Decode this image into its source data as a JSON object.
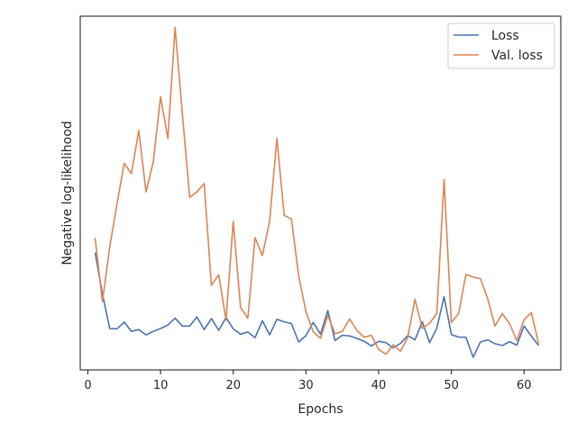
{
  "chart_data": {
    "type": "line",
    "xlabel": "Epochs",
    "ylabel": "Negative log-likelihood",
    "xlim": [
      -1.05,
      65.05
    ],
    "ylim": [
      0.0,
      1.0
    ],
    "xticks": [
      0,
      10,
      20,
      30,
      40,
      50,
      60
    ],
    "yticks_visible": false,
    "grid": false,
    "legend_position": "top-right",
    "x": [
      1,
      2,
      3,
      4,
      5,
      6,
      7,
      8,
      9,
      10,
      11,
      12,
      13,
      14,
      15,
      16,
      17,
      18,
      19,
      20,
      21,
      22,
      23,
      24,
      25,
      26,
      27,
      28,
      29,
      30,
      31,
      32,
      33,
      34,
      35,
      36,
      37,
      38,
      39,
      40,
      41,
      42,
      43,
      44,
      45,
      46,
      47,
      48,
      49,
      50,
      51,
      52,
      53,
      54,
      55,
      56,
      57,
      58,
      59,
      60,
      61,
      62
    ],
    "series": [
      {
        "name": "Loss",
        "color": "#4c72b0",
        "values": [
          0.332,
          0.215,
          0.117,
          0.116,
          0.135,
          0.109,
          0.114,
          0.099,
          0.109,
          0.117,
          0.127,
          0.146,
          0.124,
          0.124,
          0.15,
          0.114,
          0.145,
          0.112,
          0.148,
          0.116,
          0.101,
          0.107,
          0.091,
          0.139,
          0.099,
          0.143,
          0.136,
          0.131,
          0.079,
          0.097,
          0.134,
          0.101,
          0.168,
          0.083,
          0.098,
          0.096,
          0.089,
          0.081,
          0.068,
          0.081,
          0.077,
          0.062,
          0.075,
          0.097,
          0.085,
          0.136,
          0.077,
          0.118,
          0.207,
          0.1,
          0.093,
          0.092,
          0.036,
          0.079,
          0.085,
          0.074,
          0.069,
          0.08,
          0.07,
          0.124,
          0.096,
          0.069
        ]
      },
      {
        "name": "Val. loss",
        "color": "#dd8452",
        "values": [
          0.373,
          0.193,
          0.347,
          0.469,
          0.584,
          0.555,
          0.677,
          0.503,
          0.588,
          0.772,
          0.654,
          0.968,
          0.723,
          0.488,
          0.503,
          0.527,
          0.239,
          0.269,
          0.141,
          0.42,
          0.177,
          0.146,
          0.374,
          0.323,
          0.421,
          0.655,
          0.437,
          0.427,
          0.266,
          0.164,
          0.108,
          0.089,
          0.154,
          0.102,
          0.109,
          0.144,
          0.112,
          0.092,
          0.098,
          0.058,
          0.044,
          0.071,
          0.053,
          0.092,
          0.2,
          0.117,
          0.132,
          0.159,
          0.538,
          0.134,
          0.159,
          0.27,
          0.262,
          0.258,
          0.201,
          0.124,
          0.159,
          0.131,
          0.083,
          0.142,
          0.162,
          0.075
        ]
      }
    ]
  }
}
